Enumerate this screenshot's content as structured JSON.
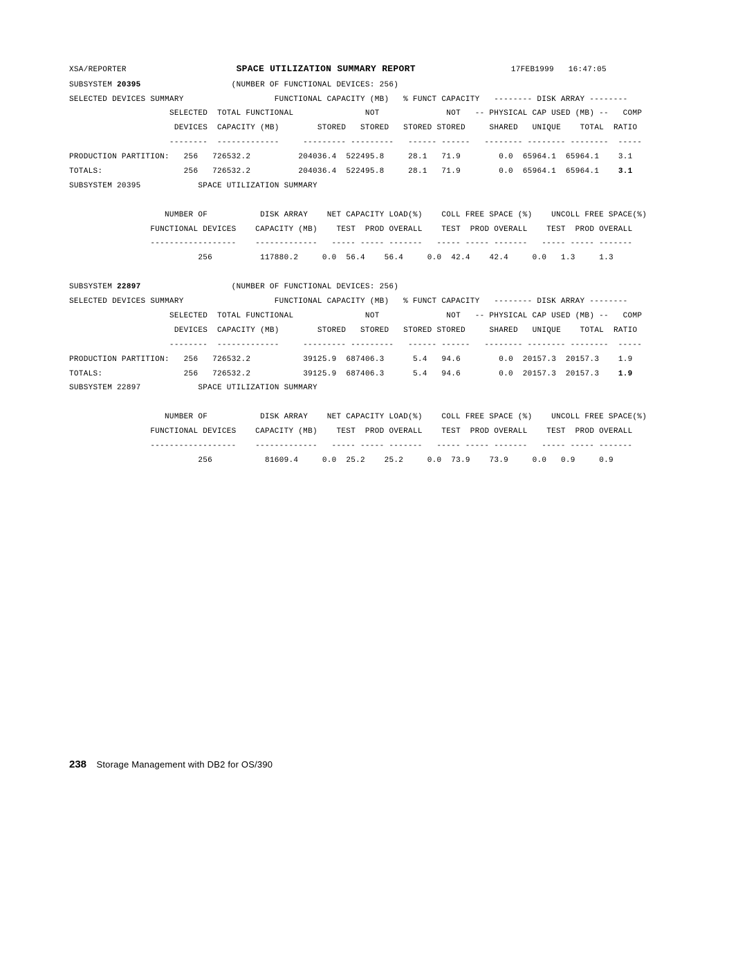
{
  "header": {
    "left": "XSA/REPORTER",
    "title": "SPACE UTILIZATION SUMMARY REPORT",
    "date": "17FEB1999",
    "time": "16:47:05"
  },
  "sub1": {
    "id_label": "SUBSYSTEM",
    "id": "20395",
    "nfd_label": "(NUMBER OF FUNCTIONAL DEVICES: 256)",
    "sds_label": "SELECTED DEVICES SUMMARY",
    "h_func_cap": "FUNCTIONAL CAPACITY (MB)",
    "h_pct_func": "% FUNCT CAPACITY",
    "h_disk_array": "-------- DISK ARRAY --------",
    "h_selected": "SELECTED",
    "h_totfunc": "TOTAL FUNCTIONAL",
    "h_not": "NOT",
    "h_phys": "-- PHYSICAL CAP USED (MB) --",
    "h_comp": "COMP",
    "h_devices": "DEVICES",
    "h_capmb": "CAPACITY (MB)",
    "h_stored": "STORED",
    "h_shared": "SHARED",
    "h_unique": "UNIQUE",
    "h_total": "TOTAL",
    "h_ratio": "RATIO",
    "row1_label": "PRODUCTION PARTITION:",
    "r1_sel": "256",
    "r1_tfc": "726532.2",
    "r1_st": "204036.4",
    "r1_nst": "522495.8",
    "r1_pst": "28.1",
    "r1_pnst": "71.9",
    "r1_sh": "0.0",
    "r1_un": "65964.1",
    "r1_tot": "65964.1",
    "r1_cr": "3.1",
    "row2_label": "TOTALS:",
    "r2_sel": "256",
    "r2_tfc": "726532.2",
    "r2_st": "204036.4",
    "r2_nst": "522495.8",
    "r2_pst": "28.1",
    "r2_pnst": "71.9",
    "r2_sh": "0.0",
    "r2_un": "65964.1",
    "r2_tot": "65964.1",
    "r2_cr": "3.1",
    "sus_label": "SPACE UTILIZATION SUMMARY",
    "h_numof": "NUMBER OF",
    "h_diskarr2": "DISK ARRAY",
    "h_netcap": "NET CAPACITY LOAD(%)",
    "h_collfree": "COLL FREE SPACE (%)",
    "h_uncollfree": "UNCOLL FREE SPACE(%)",
    "h_funcdev": "FUNCTIONAL DEVICES",
    "h_test": "TEST",
    "h_prod": "PROD",
    "h_overall": "OVERALL",
    "s_num": "256",
    "s_cap": "117880.2",
    "s_nt": "0.0",
    "s_np": "56.4",
    "s_no": "56.4",
    "s_ct": "0.0",
    "s_cp": "42.4",
    "s_co": "42.4",
    "s_ut": "0.0",
    "s_up": "1.3",
    "s_uo": "1.3"
  },
  "sub2": {
    "id": "22897",
    "nfd_label": "(NUMBER OF FUNCTIONAL DEVICES: 256)",
    "r1_sel": "256",
    "r1_tfc": "726532.2",
    "r1_st": "39125.9",
    "r1_nst": "687406.3",
    "r1_pst": "5.4",
    "r1_pnst": "94.6",
    "r1_sh": "0.0",
    "r1_un": "20157.3",
    "r1_tot": "20157.3",
    "r1_cr": "1.9",
    "r2_sel": "256",
    "r2_tfc": "726532.2",
    "r2_st": "39125.9",
    "r2_nst": "687406.3",
    "r2_pst": "5.4",
    "r2_pnst": "94.6",
    "r2_sh": "0.0",
    "r2_un": "20157.3",
    "r2_tot": "20157.3",
    "r2_cr": "1.9",
    "s_num": "256",
    "s_cap": "81609.4",
    "s_nt": "0.0",
    "s_np": "25.2",
    "s_no": "25.2",
    "s_ct": "0.0",
    "s_cp": "73.9",
    "s_co": "73.9",
    "s_ut": "0.0",
    "s_up": "0.9",
    "s_uo": "0.9"
  },
  "footer": {
    "page": "238",
    "text": "Storage Management with DB2 for OS/390"
  }
}
